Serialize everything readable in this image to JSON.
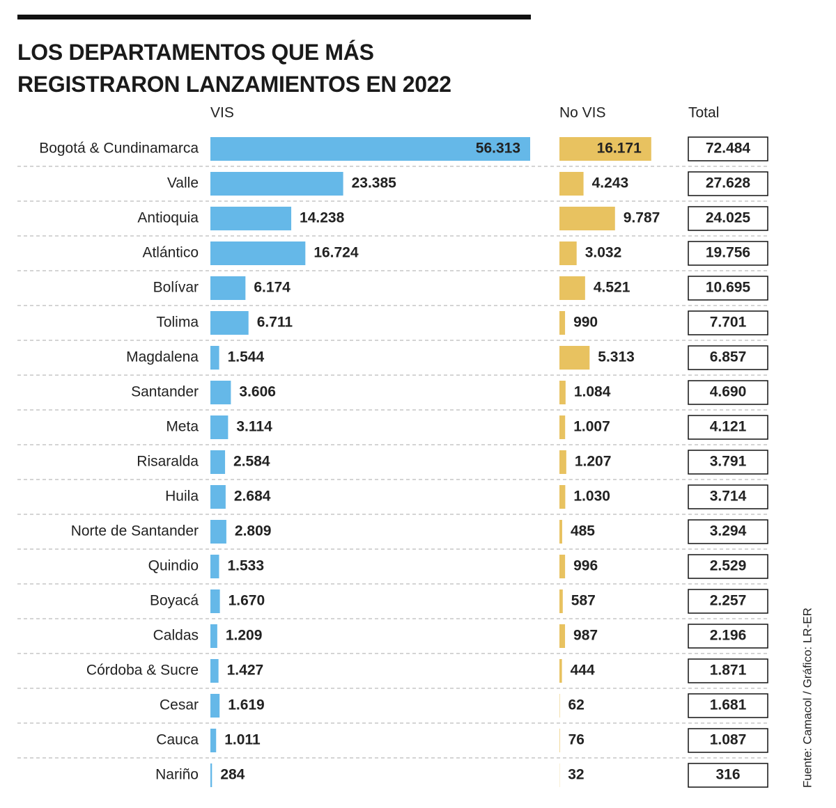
{
  "chart_data": {
    "type": "bar",
    "title": "LOS DEPARTAMENTOS QUE MÁS REGISTRARON LANZAMIENTOS EN 2022",
    "source": "Fuente: Camacol / Gráfico: LR-ER",
    "categories": [
      "Bogotá & Cundinamarca",
      "Valle",
      "Antioquia",
      "Atlántico",
      "Bolívar",
      "Tolima",
      "Magdalena",
      "Santander",
      "Meta",
      "Risaralda",
      "Huila",
      "Norte de Santander",
      "Quindio",
      "Boyacá",
      "Caldas",
      "Córdoba & Sucre",
      "Cesar",
      "Cauca",
      "Nariño"
    ],
    "series": [
      {
        "name": "VIS",
        "color": "#65b8e8",
        "values": [
          56313,
          23385,
          14238,
          16724,
          6174,
          6711,
          1544,
          3606,
          3114,
          2584,
          2684,
          2809,
          1533,
          1670,
          1209,
          1427,
          1619,
          1011,
          284
        ],
        "value_labels": [
          "56.313",
          "23.385",
          "14.238",
          "16.724",
          "6.174",
          "6.711",
          "1.544",
          "3.606",
          "3.114",
          "2.584",
          "2.684",
          "2.809",
          "1.533",
          "1.670",
          "1.209",
          "1.427",
          "1.619",
          "1.011",
          "284"
        ]
      },
      {
        "name": "No VIS",
        "color": "#e8c260",
        "values": [
          16171,
          4243,
          9787,
          3032,
          4521,
          990,
          5313,
          1084,
          1007,
          1207,
          1030,
          485,
          996,
          587,
          987,
          444,
          62,
          76,
          32
        ],
        "value_labels": [
          "16.171",
          "4.243",
          "9.787",
          "3.032",
          "4.521",
          "990",
          "5.313",
          "1.084",
          "1.007",
          "1.207",
          "1.030",
          "485",
          "996",
          "587",
          "987",
          "444",
          "62",
          "76",
          "32"
        ]
      },
      {
        "name": "Total",
        "values": [
          72484,
          27628,
          24025,
          19756,
          10695,
          7701,
          6857,
          4690,
          4121,
          3791,
          3714,
          3294,
          2529,
          2257,
          2196,
          1871,
          1681,
          1087,
          316
        ],
        "value_labels": [
          "72.484",
          "27.628",
          "24.025",
          "19.756",
          "10.695",
          "7.701",
          "6.857",
          "4.690",
          "4.121",
          "3.791",
          "3.714",
          "3.294",
          "2.529",
          "2.257",
          "2.196",
          "1.871",
          "1.681",
          "1.087",
          "316"
        ]
      }
    ]
  }
}
